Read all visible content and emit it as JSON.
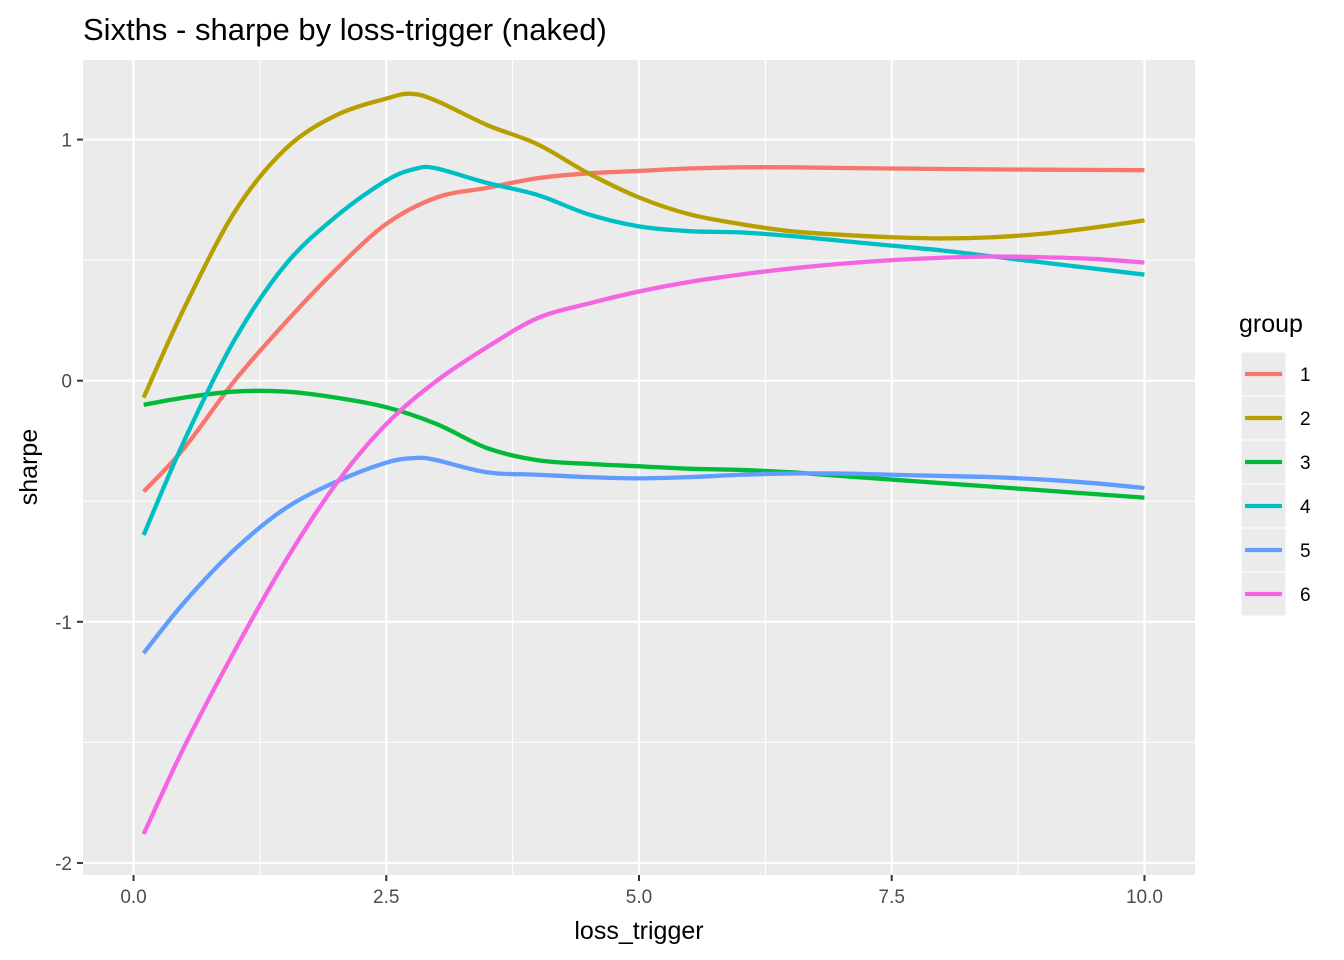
{
  "chart_data": {
    "type": "line",
    "title": "Sixths - sharpe by loss-trigger (naked)",
    "xlabel": "loss_trigger",
    "ylabel": "sharpe",
    "xlim": [
      -0.5,
      10.5
    ],
    "ylim": [
      -2.05,
      1.33
    ],
    "x_ticks": [
      0.0,
      2.5,
      5.0,
      7.5,
      10.0
    ],
    "x_tick_labels": [
      "0.0",
      "2.5",
      "5.0",
      "7.5",
      "10.0"
    ],
    "y_ticks": [
      -2,
      -1,
      0,
      1
    ],
    "y_tick_labels": [
      "-2",
      "-1",
      "0",
      "1"
    ],
    "grid": true,
    "legend": {
      "title": "group",
      "position": "right"
    },
    "series": [
      {
        "name": "1",
        "color": "#F8766D",
        "points": [
          [
            0.1,
            -0.46
          ],
          [
            0.5,
            -0.28
          ],
          [
            1.0,
            0.0
          ],
          [
            1.5,
            0.24
          ],
          [
            2.0,
            0.46
          ],
          [
            2.5,
            0.65
          ],
          [
            3.0,
            0.76
          ],
          [
            3.5,
            0.8
          ],
          [
            4.0,
            0.84
          ],
          [
            4.5,
            0.86
          ],
          [
            5.0,
            0.87
          ],
          [
            5.5,
            0.88
          ],
          [
            6.0,
            0.885
          ],
          [
            6.5,
            0.885
          ],
          [
            7.0,
            0.882
          ],
          [
            7.5,
            0.88
          ],
          [
            8.0,
            0.878
          ],
          [
            9.0,
            0.875
          ],
          [
            10.0,
            0.873
          ]
        ]
      },
      {
        "name": "2",
        "color": "#B79F00",
        "points": [
          [
            0.1,
            -0.07
          ],
          [
            0.5,
            0.3
          ],
          [
            1.0,
            0.7
          ],
          [
            1.5,
            0.96
          ],
          [
            2.0,
            1.1
          ],
          [
            2.5,
            1.17
          ],
          [
            2.75,
            1.19
          ],
          [
            3.0,
            1.16
          ],
          [
            3.5,
            1.06
          ],
          [
            4.0,
            0.98
          ],
          [
            4.5,
            0.86
          ],
          [
            5.0,
            0.76
          ],
          [
            5.5,
            0.69
          ],
          [
            6.0,
            0.65
          ],
          [
            6.5,
            0.62
          ],
          [
            7.0,
            0.605
          ],
          [
            7.5,
            0.595
          ],
          [
            8.0,
            0.59
          ],
          [
            8.5,
            0.595
          ],
          [
            9.0,
            0.61
          ],
          [
            9.5,
            0.635
          ],
          [
            10.0,
            0.665
          ]
        ]
      },
      {
        "name": "3",
        "color": "#00BA38",
        "points": [
          [
            0.1,
            -0.1
          ],
          [
            0.5,
            -0.07
          ],
          [
            1.0,
            -0.045
          ],
          [
            1.5,
            -0.045
          ],
          [
            2.0,
            -0.07
          ],
          [
            2.5,
            -0.11
          ],
          [
            3.0,
            -0.18
          ],
          [
            3.5,
            -0.28
          ],
          [
            4.0,
            -0.33
          ],
          [
            4.5,
            -0.345
          ],
          [
            5.0,
            -0.355
          ],
          [
            5.5,
            -0.365
          ],
          [
            6.0,
            -0.37
          ],
          [
            6.5,
            -0.38
          ],
          [
            7.0,
            -0.395
          ],
          [
            7.5,
            -0.41
          ],
          [
            8.0,
            -0.425
          ],
          [
            8.5,
            -0.44
          ],
          [
            9.0,
            -0.455
          ],
          [
            9.5,
            -0.47
          ],
          [
            10.0,
            -0.485
          ]
        ]
      },
      {
        "name": "4",
        "color": "#00BFC4",
        "points": [
          [
            0.1,
            -0.64
          ],
          [
            0.5,
            -0.25
          ],
          [
            1.0,
            0.17
          ],
          [
            1.5,
            0.48
          ],
          [
            2.0,
            0.68
          ],
          [
            2.5,
            0.83
          ],
          [
            2.8,
            0.88
          ],
          [
            3.0,
            0.88
          ],
          [
            3.5,
            0.82
          ],
          [
            4.0,
            0.77
          ],
          [
            4.5,
            0.69
          ],
          [
            5.0,
            0.64
          ],
          [
            5.5,
            0.62
          ],
          [
            6.0,
            0.615
          ],
          [
            6.5,
            0.6
          ],
          [
            7.0,
            0.58
          ],
          [
            7.5,
            0.56
          ],
          [
            8.0,
            0.54
          ],
          [
            8.5,
            0.515
          ],
          [
            9.0,
            0.49
          ],
          [
            9.5,
            0.465
          ],
          [
            10.0,
            0.44
          ]
        ]
      },
      {
        "name": "5",
        "color": "#619CFF",
        "points": [
          [
            0.1,
            -1.13
          ],
          [
            0.5,
            -0.92
          ],
          [
            1.0,
            -0.7
          ],
          [
            1.5,
            -0.53
          ],
          [
            2.0,
            -0.42
          ],
          [
            2.5,
            -0.34
          ],
          [
            2.8,
            -0.32
          ],
          [
            3.0,
            -0.33
          ],
          [
            3.5,
            -0.38
          ],
          [
            4.0,
            -0.39
          ],
          [
            4.5,
            -0.4
          ],
          [
            5.0,
            -0.405
          ],
          [
            5.5,
            -0.4
          ],
          [
            6.0,
            -0.39
          ],
          [
            6.5,
            -0.385
          ],
          [
            7.0,
            -0.385
          ],
          [
            7.5,
            -0.39
          ],
          [
            8.0,
            -0.395
          ],
          [
            8.5,
            -0.4
          ],
          [
            9.0,
            -0.41
          ],
          [
            9.5,
            -0.425
          ],
          [
            10.0,
            -0.445
          ]
        ]
      },
      {
        "name": "6",
        "color": "#F564E3",
        "points": [
          [
            0.1,
            -1.88
          ],
          [
            0.5,
            -1.52
          ],
          [
            1.0,
            -1.12
          ],
          [
            1.5,
            -0.75
          ],
          [
            2.0,
            -0.43
          ],
          [
            2.5,
            -0.18
          ],
          [
            3.0,
            0.0
          ],
          [
            3.5,
            0.14
          ],
          [
            4.0,
            0.26
          ],
          [
            4.5,
            0.32
          ],
          [
            5.0,
            0.37
          ],
          [
            5.5,
            0.41
          ],
          [
            6.0,
            0.44
          ],
          [
            6.5,
            0.465
          ],
          [
            7.0,
            0.485
          ],
          [
            7.5,
            0.5
          ],
          [
            8.0,
            0.51
          ],
          [
            8.5,
            0.515
          ],
          [
            9.0,
            0.512
          ],
          [
            9.5,
            0.505
          ],
          [
            10.0,
            0.49
          ]
        ]
      }
    ]
  }
}
